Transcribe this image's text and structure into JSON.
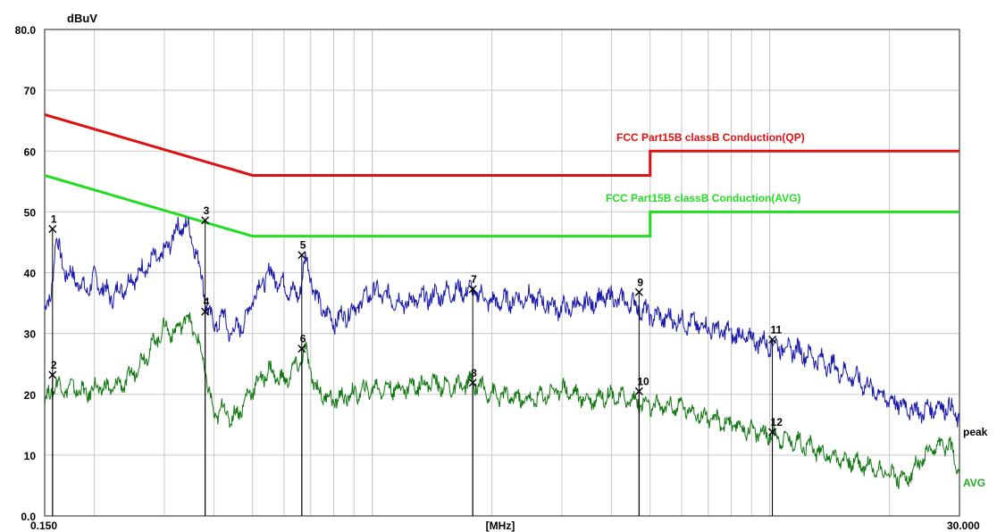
{
  "chart_data": {
    "type": "line",
    "x_scale": "log",
    "xlim": [
      0.15,
      30.0
    ],
    "ylim": [
      0.0,
      80.0
    ],
    "y_unit": "dBuV",
    "x_unit": "[MHz]",
    "x_tick_labels": [
      "0.150",
      "30.000"
    ],
    "y_ticks": [
      {
        "value": 0,
        "label": "0.0"
      },
      {
        "value": 10,
        "label": "10"
      },
      {
        "value": 20,
        "label": "20"
      },
      {
        "value": 30,
        "label": "30"
      },
      {
        "value": 40,
        "label": "40"
      },
      {
        "value": 50,
        "label": "50"
      },
      {
        "value": 60,
        "label": "60"
      },
      {
        "value": 70,
        "label": "70"
      },
      {
        "value": 80,
        "label": "80.0"
      }
    ],
    "grid": true,
    "colors": {
      "qp_limit": "#dd1111",
      "avg_limit": "#22dd22",
      "peak_trace": "#1a1aaa",
      "avg_trace": "#117711",
      "marker": "#000000",
      "grid": "#c8c8c8"
    },
    "limit_lines": [
      {
        "name": "FCC  Part15B classB Conduction(QP)",
        "x": [
          0.15,
          0.5,
          5.0,
          5.0,
          30.0
        ],
        "y": [
          66,
          56,
          56,
          60,
          60
        ]
      },
      {
        "name": "FCC  Part15B classB Conduction(AVG)",
        "x": [
          0.15,
          0.5,
          5.0,
          5.0,
          30.0
        ],
        "y": [
          56,
          46,
          46,
          50,
          50
        ]
      }
    ],
    "series": [
      {
        "name": "peak",
        "x": [
          0.15,
          0.155,
          0.16,
          0.165,
          0.17,
          0.18,
          0.19,
          0.2,
          0.22,
          0.24,
          0.26,
          0.28,
          0.3,
          0.32,
          0.34,
          0.36,
          0.38,
          0.39,
          0.4,
          0.42,
          0.44,
          0.46,
          0.48,
          0.5,
          0.55,
          0.6,
          0.65,
          0.68,
          0.7,
          0.72,
          0.75,
          0.8,
          0.9,
          1.0,
          1.2,
          1.4,
          1.6,
          1.8,
          2.0,
          2.5,
          3.0,
          3.5,
          3.9,
          4.5,
          5.0,
          6.0,
          7.0,
          8.0,
          9.0,
          10.5,
          12.0,
          14.0,
          16.0,
          18.0,
          20.0,
          22.0,
          24.0,
          26.0,
          28.0,
          30.0
        ],
        "y": [
          34,
          35,
          46,
          42,
          40,
          39,
          37,
          39,
          36,
          38,
          40,
          42,
          43,
          47,
          48,
          44,
          36,
          33,
          31,
          33,
          30,
          31,
          32,
          36,
          40,
          38,
          36,
          42,
          40,
          36,
          34,
          32,
          34,
          37,
          35,
          36,
          37,
          37,
          35,
          36,
          34,
          35,
          36,
          35,
          33,
          32,
          31,
          30,
          29,
          28,
          27,
          25,
          23,
          21,
          19,
          18,
          17,
          18,
          18,
          16
        ]
      },
      {
        "name": "AVG",
        "x": [
          0.15,
          0.155,
          0.16,
          0.165,
          0.17,
          0.18,
          0.19,
          0.2,
          0.22,
          0.24,
          0.26,
          0.28,
          0.3,
          0.32,
          0.34,
          0.36,
          0.38,
          0.39,
          0.4,
          0.42,
          0.44,
          0.46,
          0.48,
          0.5,
          0.55,
          0.6,
          0.65,
          0.68,
          0.7,
          0.72,
          0.75,
          0.8,
          0.9,
          1.0,
          1.2,
          1.4,
          1.6,
          1.8,
          2.0,
          2.5,
          3.0,
          3.5,
          3.9,
          4.5,
          5.0,
          6.0,
          7.0,
          8.0,
          9.0,
          10.5,
          12.0,
          14.0,
          16.0,
          18.0,
          20.0,
          22.0,
          24.0,
          26.0,
          28.0,
          30.0
        ],
        "y": [
          19,
          20,
          22,
          21,
          21,
          21,
          20,
          21,
          21,
          22,
          25,
          28,
          31,
          30,
          33,
          30,
          24,
          20,
          16,
          18,
          16,
          17,
          19,
          21,
          24,
          22,
          25,
          27,
          24,
          21,
          20,
          19,
          20,
          21,
          21,
          22,
          21,
          22,
          20,
          19,
          21,
          19,
          20,
          19,
          18,
          18,
          16,
          15,
          14,
          13,
          12,
          10,
          9,
          8,
          7,
          6,
          9,
          11,
          12,
          8
        ]
      }
    ],
    "markers": [
      {
        "label": "1",
        "x": 0.157,
        "y": 47.2
      },
      {
        "label": "2",
        "x": 0.157,
        "y": 23.2
      },
      {
        "label": "3",
        "x": 0.38,
        "y": 48.6
      },
      {
        "label": "4",
        "x": 0.38,
        "y": 33.6
      },
      {
        "label": "5",
        "x": 0.665,
        "y": 42.9
      },
      {
        "label": "6",
        "x": 0.665,
        "y": 27.5
      },
      {
        "label": "7",
        "x": 1.79,
        "y": 37.3
      },
      {
        "label": "8",
        "x": 1.79,
        "y": 21.9
      },
      {
        "label": "9",
        "x": 4.69,
        "y": 36.8
      },
      {
        "label": "10",
        "x": 4.69,
        "y": 20.5
      },
      {
        "label": "11",
        "x": 10.15,
        "y": 29.0
      },
      {
        "label": "12",
        "x": 10.15,
        "y": 13.8
      }
    ],
    "trace_labels": {
      "peak": "peak",
      "avg": "AVG"
    }
  }
}
